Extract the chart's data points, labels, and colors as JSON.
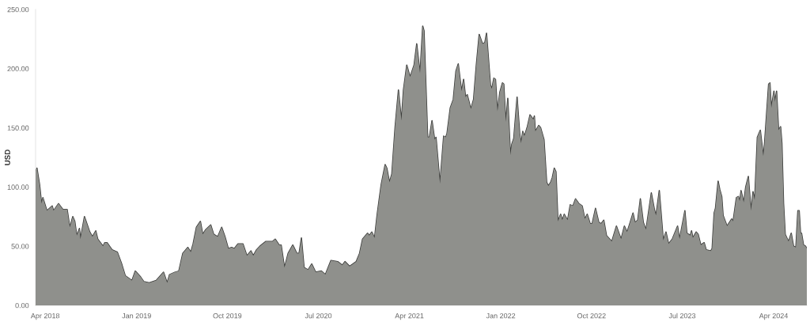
{
  "chart_data": {
    "type": "area",
    "ylabel": "USD",
    "x": [
      "2018-03-03",
      "2018-03-07",
      "2018-03-15",
      "2018-03-21",
      "2018-03-25",
      "2018-04-06",
      "2018-04-22",
      "2018-04-26",
      "2018-05-11",
      "2018-05-24",
      "2018-06-06",
      "2018-06-14",
      "2018-06-23",
      "2018-06-29",
      "2018-07-05",
      "2018-07-13",
      "2018-07-16",
      "2018-07-28",
      "2018-08-13",
      "2018-08-21",
      "2018-08-31",
      "2018-09-06",
      "2018-09-22",
      "2018-09-27",
      "2018-10-04",
      "2018-10-19",
      "2018-11-04",
      "2018-11-16",
      "2018-11-28",
      "2018-12-18",
      "2018-12-28",
      "2019-01-13",
      "2019-01-23",
      "2019-02-08",
      "2019-03-01",
      "2019-03-23",
      "2019-04-03",
      "2019-04-10",
      "2019-04-26",
      "2019-05-08",
      "2019-05-20",
      "2019-06-04",
      "2019-06-13",
      "2019-06-20",
      "2019-06-30",
      "2019-07-12",
      "2019-07-19",
      "2019-07-28",
      "2019-08-12",
      "2019-08-21",
      "2019-09-02",
      "2019-09-14",
      "2019-09-24",
      "2019-10-04",
      "2019-10-14",
      "2019-10-22",
      "2019-11-02",
      "2019-11-17",
      "2019-11-29",
      "2019-12-11",
      "2019-12-18",
      "2019-12-28",
      "2020-01-07",
      "2020-01-25",
      "2020-02-14",
      "2020-02-22",
      "2020-03-05",
      "2020-03-11",
      "2020-03-21",
      "2020-04-01",
      "2020-04-15",
      "2020-04-27",
      "2020-05-04",
      "2020-05-11",
      "2020-05-19",
      "2020-05-31",
      "2020-06-11",
      "2020-06-23",
      "2020-07-10",
      "2020-07-22",
      "2020-08-08",
      "2020-08-28",
      "2020-09-11",
      "2020-09-19",
      "2020-10-03",
      "2020-10-23",
      "2020-11-02",
      "2020-11-11",
      "2020-11-26",
      "2020-12-01",
      "2020-12-09",
      "2020-12-17",
      "2020-12-25",
      "2021-01-06",
      "2021-01-18",
      "2021-01-23",
      "2021-01-31",
      "2021-02-07",
      "2021-02-17",
      "2021-02-27",
      "2021-03-08",
      "2021-03-14",
      "2021-03-24",
      "2021-04-03",
      "2021-04-15",
      "2021-04-23",
      "2021-05-03",
      "2021-05-11",
      "2021-05-15",
      "2021-05-26",
      "2021-05-31",
      "2021-06-08",
      "2021-06-16",
      "2021-06-20",
      "2021-07-02",
      "2021-07-13",
      "2021-07-19",
      "2021-07-23",
      "2021-08-02",
      "2021-08-11",
      "2021-08-19",
      "2021-08-26",
      "2021-09-05",
      "2021-09-11",
      "2021-09-17",
      "2021-09-22",
      "2021-10-03",
      "2021-10-11",
      "2021-10-19",
      "2021-10-28",
      "2021-11-07",
      "2021-11-14",
      "2021-11-19",
      "2021-12-01",
      "2021-12-05",
      "2021-12-11",
      "2021-12-16",
      "2021-12-22",
      "2021-12-29",
      "2022-01-06",
      "2022-01-10",
      "2022-01-16",
      "2022-01-22",
      "2022-01-30",
      "2022-02-03",
      "2022-02-09",
      "2022-02-19",
      "2022-02-27",
      "2022-03-03",
      "2022-03-08",
      "2022-03-13",
      "2022-03-21",
      "2022-03-30",
      "2022-04-09",
      "2022-04-12",
      "2022-04-15",
      "2022-04-25",
      "2022-05-01",
      "2022-05-11",
      "2022-05-19",
      "2022-05-24",
      "2022-05-31",
      "2022-06-05",
      "2022-06-11",
      "2022-06-16",
      "2022-06-22",
      "2022-06-30",
      "2022-07-05",
      "2022-07-11",
      "2022-07-21",
      "2022-07-29",
      "2022-08-06",
      "2022-08-14",
      "2022-08-24",
      "2022-09-03",
      "2022-09-11",
      "2022-09-18",
      "2022-09-27",
      "2022-10-03",
      "2022-10-13",
      "2022-10-23",
      "2022-10-30",
      "2022-11-07",
      "2022-11-15",
      "2022-12-01",
      "2022-12-15",
      "2022-12-29",
      "2023-01-08",
      "2023-01-16",
      "2023-01-23",
      "2023-02-03",
      "2023-02-09",
      "2023-02-17",
      "2023-02-25",
      "2023-03-06",
      "2023-03-14",
      "2023-03-30",
      "2023-04-09",
      "2023-04-13",
      "2023-04-23",
      "2023-05-05",
      "2023-05-13",
      "2023-05-21",
      "2023-06-01",
      "2023-06-17",
      "2023-06-23",
      "2023-07-03",
      "2023-07-09",
      "2023-07-15",
      "2023-07-25",
      "2023-07-29",
      "2023-08-02",
      "2023-08-12",
      "2023-08-18",
      "2023-08-26",
      "2023-09-05",
      "2023-09-11",
      "2023-09-25",
      "2023-09-29",
      "2023-10-05",
      "2023-10-09",
      "2023-10-17",
      "2023-10-22",
      "2023-10-28",
      "2023-11-01",
      "2023-11-13",
      "2023-11-27",
      "2023-12-01",
      "2023-12-11",
      "2023-12-17",
      "2023-12-21",
      "2023-12-25",
      "2024-01-02",
      "2024-01-08",
      "2024-01-16",
      "2024-01-24",
      "2024-01-30",
      "2024-02-04",
      "2024-02-12",
      "2024-02-21",
      "2024-03-01",
      "2024-03-05",
      "2024-03-17",
      "2024-03-21",
      "2024-03-25",
      "2024-04-02",
      "2024-04-05",
      "2024-04-10",
      "2024-04-16",
      "2024-04-22",
      "2024-04-26",
      "2024-05-01",
      "2024-05-06",
      "2024-05-16",
      "2024-05-24",
      "2024-05-31",
      "2024-06-07",
      "2024-06-13",
      "2024-06-17",
      "2024-06-21",
      "2024-06-24",
      "2024-06-30",
      "2024-07-06",
      "2024-07-10"
    ],
    "series": [
      {
        "color": "#8f908c",
        "values": [
          113,
          116,
          102,
          86,
          91,
          80,
          84,
          80,
          86,
          81,
          81,
          66,
          75,
          71,
          59,
          65,
          56,
          75,
          62,
          58,
          63,
          56,
          50,
          53,
          53,
          47,
          45,
          36,
          25,
          21,
          29,
          24,
          20,
          19,
          21,
          28,
          19,
          26,
          28,
          29,
          44,
          49,
          45,
          52,
          66,
          71,
          60,
          64,
          68,
          60,
          58,
          66,
          58,
          48,
          49,
          48,
          52,
          52,
          42,
          46,
          42,
          47,
          50,
          54,
          54,
          56,
          51,
          51,
          32,
          44,
          51,
          44,
          44,
          57,
          32,
          30,
          35,
          28,
          29,
          26,
          38,
          37,
          34,
          37,
          33,
          37,
          44,
          56,
          61,
          59,
          62,
          57,
          77,
          102,
          119,
          116,
          104,
          111,
          151,
          182,
          156,
          182,
          203,
          193,
          203,
          221,
          196,
          236,
          232,
          142,
          142,
          156,
          140,
          142,
          103,
          143,
          142,
          145,
          167,
          174,
          198,
          204,
          181,
          191,
          176,
          178,
          166,
          174,
          202,
          229,
          221,
          222,
          230,
          186,
          183,
          192,
          191,
          164,
          180,
          188,
          187,
          155,
          175,
          127,
          136,
          141,
          176,
          145,
          137,
          147,
          143,
          150,
          161,
          157,
          160,
          147,
          152,
          150,
          140,
          104,
          101,
          104,
          108,
          116,
          113,
          71,
          77,
          72,
          77,
          72,
          85,
          84,
          90,
          86,
          84,
          73,
          77,
          69,
          69,
          82,
          70,
          69,
          72,
          59,
          54,
          67,
          56,
          67,
          62,
          68,
          78,
          70,
          72,
          90,
          70,
          64,
          95,
          80,
          76,
          97,
          55,
          62,
          52,
          56,
          67,
          56,
          71,
          80,
          61,
          59,
          63,
          57,
          62,
          60,
          51,
          53,
          47,
          46,
          48,
          78,
          82,
          105,
          98,
          92,
          76,
          67,
          73,
          71,
          91,
          92,
          88,
          97,
          87,
          100,
          109,
          80,
          96,
          89,
          142,
          148,
          126,
          138,
          187,
          188,
          167,
          181,
          172,
          181,
          148,
          151,
          137,
          86,
          60,
          54,
          61,
          50,
          49,
          80,
          80,
          61,
          61,
          51,
          50,
          48
        ]
      }
    ],
    "xlim": [
      "2018-03-03",
      "2024-07-10"
    ],
    "ylim": [
      0,
      250
    ],
    "xticks": [
      {
        "value": "2018-04-01",
        "label": "Apr 2018"
      },
      {
        "value": "2019-01-01",
        "label": "Jan 2019"
      },
      {
        "value": "2019-10-01",
        "label": "Oct 2019"
      },
      {
        "value": "2020-07-01",
        "label": "Jul 2020"
      },
      {
        "value": "2021-04-01",
        "label": "Apr 2021"
      },
      {
        "value": "2022-01-01",
        "label": "Jan 2022"
      },
      {
        "value": "2022-10-01",
        "label": "Oct 2022"
      },
      {
        "value": "2023-07-01",
        "label": "Jul 2023"
      },
      {
        "value": "2024-04-01",
        "label": "Apr 2024"
      }
    ],
    "yticks": [
      {
        "value": 0,
        "label": "0.00"
      },
      {
        "value": 50,
        "label": "50.00"
      },
      {
        "value": 100,
        "label": "100.00"
      },
      {
        "value": 150,
        "label": "150.00"
      },
      {
        "value": 200,
        "label": "200.00"
      },
      {
        "value": 250,
        "label": "250.00"
      }
    ]
  }
}
